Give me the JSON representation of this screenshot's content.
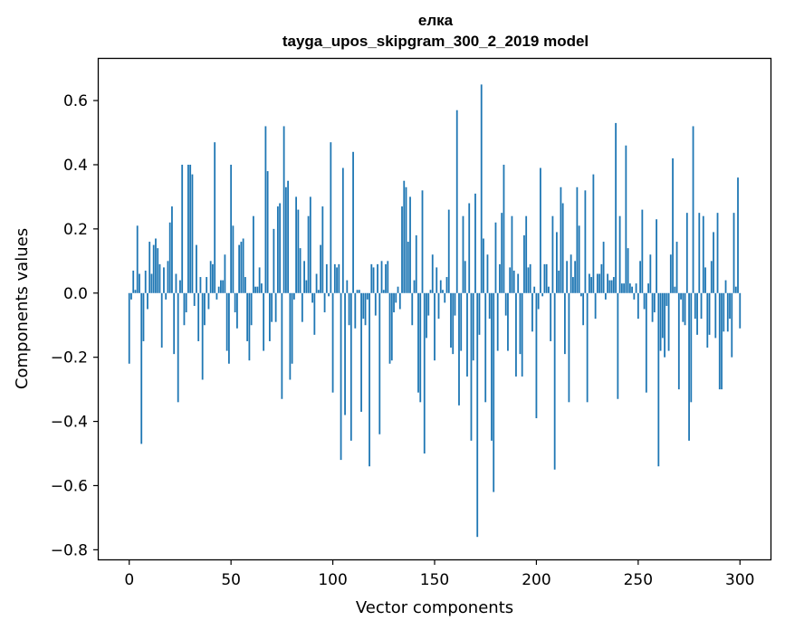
{
  "chart_data": {
    "type": "bar",
    "title": "елка",
    "subtitle": "tayga_upos_skipgram_300_2_2019 model",
    "xlabel": "Vector components",
    "ylabel": "Components values",
    "xlim": [
      -15,
      315
    ],
    "ylim": [
      -0.83,
      0.73
    ],
    "xticks": [
      0,
      50,
      100,
      150,
      200,
      250,
      300
    ],
    "yticks": [
      -0.8,
      -0.6,
      -0.4,
      -0.2,
      0.0,
      0.2,
      0.4,
      0.6
    ],
    "ytick_labels": [
      "−0.8",
      "−0.6",
      "−0.4",
      "−0.2",
      "0.0",
      "0.2",
      "0.4",
      "0.6"
    ],
    "bar_color": "#1f77b4",
    "categories_note": "component index 0..299",
    "values": [
      -0.22,
      -0.02,
      0.07,
      0.01,
      0.21,
      0.06,
      -0.47,
      -0.15,
      0.07,
      -0.05,
      0.16,
      0.06,
      0.15,
      0.17,
      0.14,
      0.09,
      -0.17,
      0.08,
      -0.02,
      0.1,
      0.22,
      0.27,
      -0.19,
      0.06,
      -0.34,
      0.04,
      0.4,
      -0.1,
      -0.06,
      0.4,
      0.4,
      0.37,
      -0.04,
      0.15,
      -0.15,
      0.05,
      -0.27,
      -0.1,
      0.05,
      -0.05,
      0.1,
      0.09,
      0.47,
      -0.02,
      0.02,
      0.04,
      0.04,
      0.12,
      -0.18,
      -0.22,
      0.4,
      0.21,
      -0.06,
      -0.11,
      0.15,
      0.16,
      0.17,
      0.05,
      -0.15,
      -0.21,
      -0.1,
      0.24,
      0.02,
      0.02,
      0.08,
      0.03,
      -0.18,
      0.52,
      0.38,
      -0.15,
      -0.09,
      0.2,
      -0.09,
      0.27,
      0.28,
      -0.33,
      0.52,
      0.33,
      0.35,
      -0.27,
      -0.22,
      -0.02,
      0.3,
      0.26,
      0.14,
      -0.09,
      0.1,
      0.04,
      0.24,
      0.3,
      -0.03,
      -0.13,
      0.06,
      0.01,
      0.15,
      0.27,
      -0.06,
      0.09,
      -0.01,
      0.47,
      -0.31,
      0.09,
      0.08,
      0.09,
      -0.52,
      0.39,
      -0.38,
      0.04,
      -0.1,
      -0.46,
      0.44,
      -0.11,
      0.01,
      0.01,
      -0.37,
      -0.08,
      -0.1,
      -0.02,
      -0.54,
      0.09,
      0.08,
      -0.07,
      0.09,
      -0.44,
      0.1,
      0.01,
      0.09,
      0.1,
      -0.22,
      -0.21,
      -0.06,
      -0.03,
      0.02,
      -0.05,
      0.27,
      0.35,
      0.33,
      0.16,
      0.3,
      -0.1,
      0.04,
      0.18,
      -0.31,
      -0.34,
      0.32,
      -0.5,
      -0.14,
      -0.07,
      0.01,
      0.12,
      -0.21,
      0.08,
      -0.08,
      0.04,
      0.01,
      -0.03,
      0.05,
      0.26,
      -0.17,
      -0.19,
      -0.07,
      0.57,
      -0.35,
      -0.18,
      0.24,
      0.1,
      -0.26,
      0.28,
      -0.46,
      -0.21,
      0.31,
      -0.76,
      -0.13,
      0.65,
      0.17,
      -0.34,
      0.12,
      -0.08,
      -0.46,
      -0.62,
      0.22,
      -0.18,
      0.09,
      0.25,
      0.4,
      -0.07,
      -0.18,
      0.08,
      0.24,
      0.07,
      -0.26,
      0.06,
      -0.19,
      -0.26,
      0.18,
      0.24,
      0.08,
      0.09,
      -0.12,
      0.02,
      -0.39,
      -0.05,
      0.39,
      -0.01,
      0.09,
      0.09,
      0.02,
      -0.15,
      0.24,
      -0.55,
      0.19,
      0.07,
      0.33,
      0.28,
      -0.19,
      0.1,
      -0.34,
      0.12,
      0.05,
      0.1,
      0.33,
      0.21,
      -0.01,
      -0.1,
      0.32,
      -0.34,
      0.06,
      0.05,
      0.37,
      -0.08,
      0.06,
      0.06,
      0.09,
      0.16,
      -0.02,
      0.06,
      0.04,
      0.04,
      0.05,
      0.53,
      -0.33,
      0.24,
      0.03,
      0.03,
      0.46,
      0.14,
      0.03,
      0.02,
      -0.02,
      0.03,
      -0.08,
      0.1,
      0.26,
      -0.05,
      -0.31,
      0.03,
      0.12,
      -0.09,
      -0.06,
      0.23,
      -0.54,
      -0.18,
      -0.14,
      -0.2,
      -0.04,
      -0.18,
      0.12,
      0.42,
      0.02,
      0.16,
      -0.3,
      -0.02,
      -0.09,
      -0.1,
      0.25,
      -0.46,
      -0.34,
      0.52,
      -0.08,
      -0.13,
      0.25,
      -0.08,
      0.24,
      0.08,
      -0.17,
      -0.13,
      0.1,
      0.19,
      -0.14,
      0.25,
      -0.3,
      -0.3,
      -0.12,
      0.04,
      -0.12,
      -0.08,
      -0.2,
      0.25,
      0.02,
      0.36,
      -0.11
    ]
  }
}
